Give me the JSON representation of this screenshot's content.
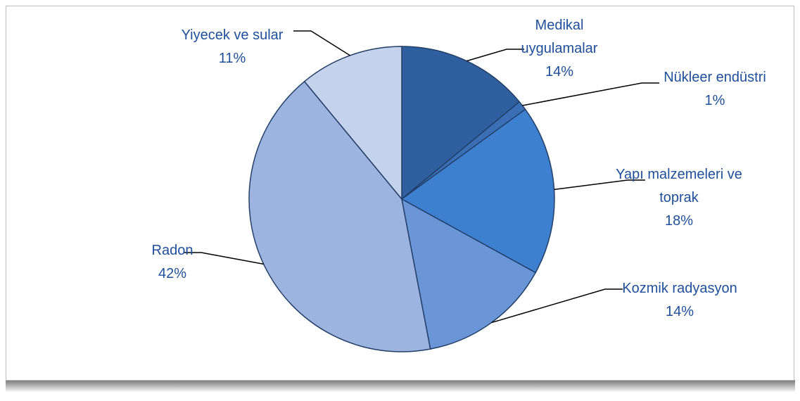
{
  "chart_data": {
    "type": "pie",
    "categories": [
      "Medikal uygulamalar",
      "Nükleer endüstri",
      "Yapı malzemeleri ve toprak",
      "Kozmik radyasyon",
      "Radon",
      "Yiyecek ve sular"
    ],
    "values": [
      14,
      1,
      18,
      14,
      42,
      11
    ],
    "value_labels": [
      "14%",
      "1%",
      "18%",
      "14%",
      "42%",
      "11%"
    ],
    "colors": [
      "#2f5f9f",
      "#3a6fb5",
      "#3e80d0",
      "#6a96d8",
      "#9cb4df",
      "#c4d2ec"
    ]
  }
}
